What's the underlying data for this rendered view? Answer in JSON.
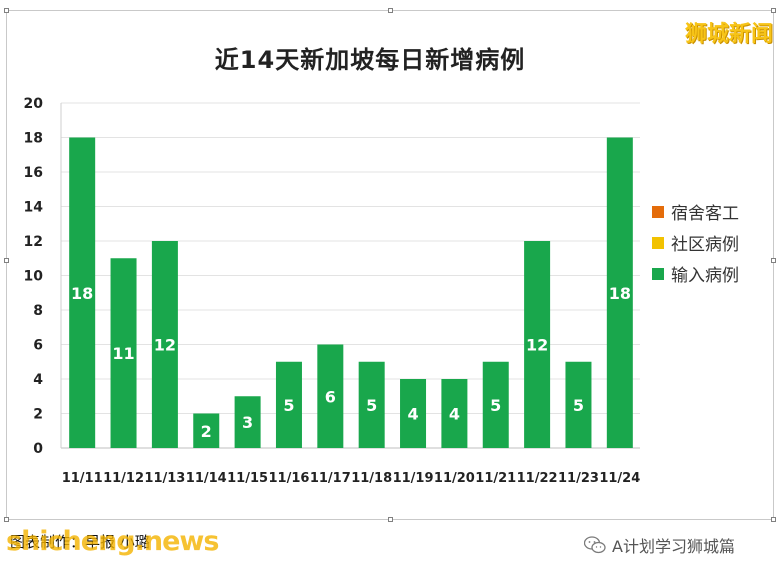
{
  "watermark_top": "狮城新闻",
  "chart_data": {
    "type": "bar",
    "title": "近14天新加坡每日新增病例",
    "categories": [
      "11/11",
      "11/12",
      "11/13",
      "11/14",
      "11/15",
      "11/16",
      "11/17",
      "11/18",
      "11/19",
      "11/20",
      "11/21",
      "11/22",
      "11/23",
      "11/24"
    ],
    "series": [
      {
        "name": "宿舍客工",
        "color": "#e46c0a",
        "values": [
          0,
          0,
          0,
          0,
          0,
          0,
          0,
          0,
          0,
          0,
          0,
          0,
          0,
          0
        ]
      },
      {
        "name": "社区病例",
        "color": "#f2c200",
        "values": [
          0,
          0,
          0,
          0,
          0,
          0,
          0,
          0,
          0,
          0,
          0,
          0,
          0,
          0
        ]
      },
      {
        "name": "输入病例",
        "color": "#19a74c",
        "values": [
          18,
          11,
          12,
          2,
          3,
          5,
          6,
          5,
          4,
          4,
          5,
          12,
          5,
          18
        ]
      }
    ],
    "ylim": [
      0,
      20
    ],
    "yticks": [
      0,
      2,
      4,
      6,
      8,
      10,
      12,
      14,
      16,
      18,
      20
    ],
    "grid": true,
    "legend_position": "right"
  },
  "credit": "图表制作：早报 小璐",
  "watermark_bottom": "shicheng.news",
  "wechat_label": "A计划学习狮城篇",
  "wechat_icon": "wechat-icon"
}
